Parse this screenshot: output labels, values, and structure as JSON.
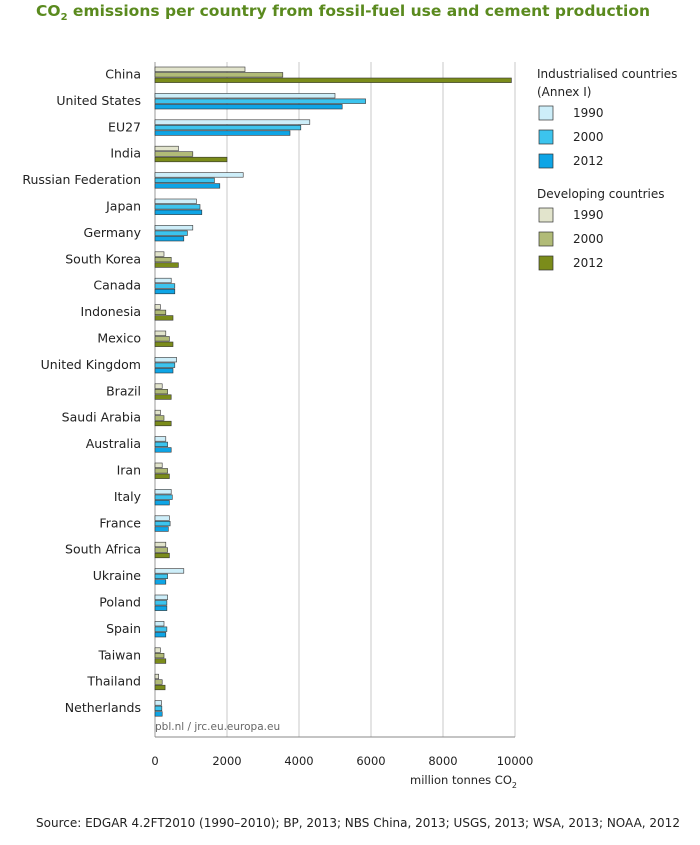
{
  "title_main": "CO",
  "title_sub": "2",
  "title_rest": " emissions per country from fossil-fuel use and cement production",
  "source": "Source: EDGAR 4.2FT2010 (1990–2010); BP, 2013; NBS China, 2013; USGS, 2013; WSA, 2013; NOAA, 2012",
  "credit": "pbl.nl / jrc.eu.europa.eu",
  "colors": {
    "ind_1990": "#cdeef9",
    "ind_2000": "#3cc4ee",
    "ind_2012": "#0ea5e6",
    "dev_1990": "#e2e4cc",
    "dev_2000": "#b1bb77",
    "dev_2012": "#7b8c1a",
    "title": "#5a8a1e"
  },
  "chart_data": {
    "type": "bar",
    "orientation": "horizontal",
    "title": "CO2 emissions per country from fossil-fuel use and cement production",
    "xlabel": "million tonnes CO2",
    "xlabel_main": "million tonnes CO",
    "xlabel_sub": "2",
    "xlim": [
      0,
      10000
    ],
    "xticks": [
      0,
      2000,
      4000,
      6000,
      8000,
      10000
    ],
    "grid": true,
    "legend_position": "right",
    "legend": {
      "industrialised_title_1": "Industrialised countries",
      "industrialised_title_2": "(Annex I)",
      "developing_title": "Developing countries",
      "years": [
        "1990",
        "2000",
        "2012"
      ]
    },
    "series_years": [
      "1990",
      "2000",
      "2012"
    ],
    "countries": [
      {
        "name": "China",
        "group": "developing",
        "values": [
          2500,
          3550,
          9900
        ]
      },
      {
        "name": "United States",
        "group": "industrialised",
        "values": [
          5000,
          5850,
          5200
        ]
      },
      {
        "name": "EU27",
        "group": "industrialised",
        "values": [
          4300,
          4050,
          3750
        ]
      },
      {
        "name": "India",
        "group": "developing",
        "values": [
          650,
          1050,
          2000
        ]
      },
      {
        "name": "Russian Federation",
        "group": "industrialised",
        "values": [
          2450,
          1650,
          1800
        ]
      },
      {
        "name": "Japan",
        "group": "industrialised",
        "values": [
          1150,
          1250,
          1300
        ]
      },
      {
        "name": "Germany",
        "group": "industrialised",
        "values": [
          1050,
          900,
          800
        ]
      },
      {
        "name": "South Korea",
        "group": "developing",
        "values": [
          250,
          450,
          650
        ]
      },
      {
        "name": "Canada",
        "group": "industrialised",
        "values": [
          450,
          550,
          550
        ]
      },
      {
        "name": "Indonesia",
        "group": "developing",
        "values": [
          150,
          300,
          500
        ]
      },
      {
        "name": "Mexico",
        "group": "developing",
        "values": [
          300,
          400,
          500
        ]
      },
      {
        "name": "United Kingdom",
        "group": "industrialised",
        "values": [
          600,
          550,
          500
        ]
      },
      {
        "name": "Brazil",
        "group": "developing",
        "values": [
          200,
          350,
          450
        ]
      },
      {
        "name": "Saudi Arabia",
        "group": "developing",
        "values": [
          150,
          250,
          450
        ]
      },
      {
        "name": "Australia",
        "group": "industrialised",
        "values": [
          300,
          350,
          450
        ]
      },
      {
        "name": "Iran",
        "group": "developing",
        "values": [
          200,
          350,
          400
        ]
      },
      {
        "name": "Italy",
        "group": "industrialised",
        "values": [
          450,
          480,
          400
        ]
      },
      {
        "name": "France",
        "group": "industrialised",
        "values": [
          400,
          420,
          370
        ]
      },
      {
        "name": "South Africa",
        "group": "developing",
        "values": [
          300,
          350,
          400
        ]
      },
      {
        "name": "Ukraine",
        "group": "industrialised",
        "values": [
          800,
          350,
          300
        ]
      },
      {
        "name": "Poland",
        "group": "industrialised",
        "values": [
          350,
          330,
          330
        ]
      },
      {
        "name": "Spain",
        "group": "industrialised",
        "values": [
          250,
          330,
          300
        ]
      },
      {
        "name": "Taiwan",
        "group": "developing",
        "values": [
          150,
          250,
          300
        ]
      },
      {
        "name": "Thailand",
        "group": "developing",
        "values": [
          100,
          200,
          280
        ]
      },
      {
        "name": "Netherlands",
        "group": "industrialised",
        "values": [
          180,
          190,
          200
        ]
      }
    ]
  }
}
